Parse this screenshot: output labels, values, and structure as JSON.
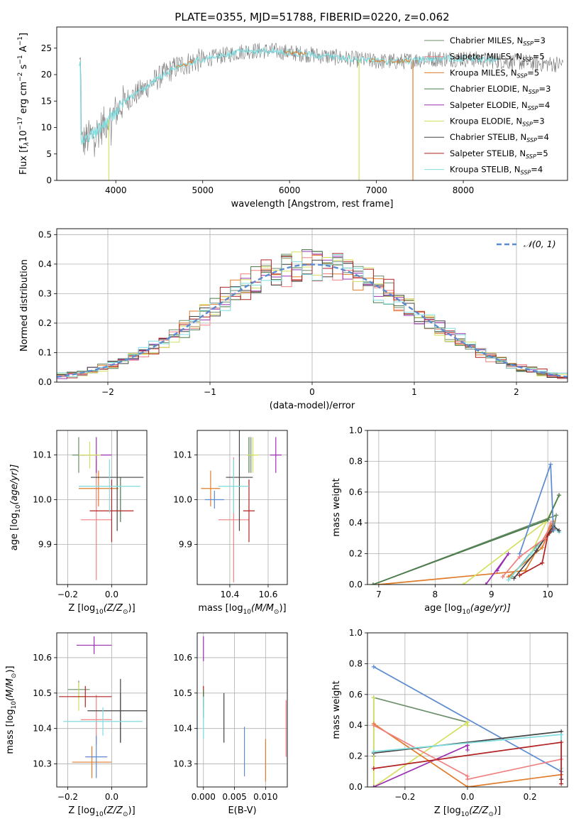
{
  "figure": {
    "title": "PLATE=0355, MJD=51788, FIBERID=0220, z=0.062"
  },
  "legend_sub": {
    "ssp": "SSP",
    "lambda": "λ",
    "sun": "⊙"
  },
  "models": [
    {
      "name": "Chabrier MILES",
      "n": "3",
      "color": "#6b8e6b"
    },
    {
      "name": "Salpeter MILES",
      "n": "5",
      "color": "#f08080"
    },
    {
      "name": "Kroupa MILES",
      "n": "5",
      "color": "#e07b2a"
    },
    {
      "name": "Chabrier ELODIE",
      "n": "3",
      "color": "#4a7a4a"
    },
    {
      "name": "Salpeter ELODIE",
      "n": "4",
      "color": "#9b30b0"
    },
    {
      "name": "Kroupa ELODIE",
      "n": "3",
      "color": "#d4e060"
    },
    {
      "name": "Chabrier STELIB",
      "n": "4",
      "color": "#444444"
    },
    {
      "name": "Salpeter STELIB",
      "n": "5",
      "color": "#b22222"
    },
    {
      "name": "Kroupa STELIB",
      "n": "4",
      "color": "#80dde0"
    }
  ],
  "chart_data": [
    {
      "id": "spectrum",
      "type": "line",
      "xlabel": "wavelength [Angstrom, rest frame]",
      "ylabel_pre": "Flux [f",
      "ylabel_mid": "10",
      "ylabel_exp1": "−17",
      "ylabel_post": " erg cm",
      "ylabel_exp2": "−2",
      "ylabel_s": " s",
      "ylabel_exp3": "−1",
      "ylabel_A": " A",
      "ylabel_exp4": "−1",
      "ylabel_end": "]",
      "xlim": [
        3320,
        9200
      ],
      "ylim": [
        0,
        29
      ],
      "xticks": [
        4000,
        5000,
        6000,
        7000,
        8000
      ],
      "yticks": [
        0,
        5,
        10,
        15,
        20,
        25
      ],
      "continuum": {
        "x": [
          3600,
          3800,
          3950,
          4100,
          4300,
          4500,
          4700,
          4900,
          5200,
          5500,
          5800,
          6100,
          6400,
          6700,
          7000,
          7300,
          7600,
          8000,
          8500,
          9000
        ],
        "y": [
          7,
          9.5,
          12,
          15,
          17,
          19.5,
          21.5,
          22.5,
          23.5,
          24.5,
          24.5,
          24,
          23.5,
          23,
          22.5,
          22.5,
          23,
          23,
          22.5,
          22
        ]
      },
      "drops": [
        {
          "x": 6800,
          "model": "Kroupa ELODIE"
        },
        {
          "x": 7420,
          "model": "Kroupa MILES"
        },
        {
          "x": 3920,
          "model": "Kroupa ELODIE"
        }
      ]
    },
    {
      "id": "residuals",
      "type": "bar",
      "xlabel": "(data-model)/error",
      "ylabel": "Normed distribution",
      "xlim": [
        -2.5,
        2.5
      ],
      "ylim": [
        0,
        0.52
      ],
      "xticks": [
        -2,
        -1,
        0,
        1,
        2
      ],
      "yticks": [
        0.0,
        0.1,
        0.2,
        0.3,
        0.4,
        0.5
      ],
      "bin_width": 0.1,
      "legend": "𝒩(0, 1)",
      "normal_color": "#5b8bd0"
    },
    {
      "id": "age-Z",
      "type": "scatter",
      "xlabel_pre": "Z [log",
      "xlabel_sub": "10",
      "xlabel_mid": "(Z/Z",
      "xlabel_end": ")]",
      "ylabel_pre": "age  [log",
      "ylabel_sub": "10",
      "ylabel_end": "(age/yr)]",
      "xlim": [
        -0.25,
        0.16
      ],
      "ylim": [
        9.81,
        10.155
      ],
      "xticks": [
        -0.2,
        0.0
      ],
      "yticks": [
        9.9,
        10.0,
        10.1
      ],
      "points": [
        {
          "model": "Chabrier MILES",
          "x": -0.15,
          "xerr": 0.03,
          "y": 10.1,
          "yerr": 0.04
        },
        {
          "model": "Salpeter MILES",
          "x": -0.07,
          "xerr": 0.07,
          "y": 9.955,
          "yerr": 0.135
        },
        {
          "model": "Kroupa MILES",
          "x": -0.06,
          "xerr": 0.09,
          "y": 10.025,
          "yerr": 0.04
        },
        {
          "model": "Chabrier ELODIE",
          "x": 0.04,
          "xerr": 0.0,
          "y": 10.0,
          "yerr": 0.05
        },
        {
          "model": "Salpeter ELODIE",
          "x": -0.07,
          "xerr": 0.07,
          "y": 10.1,
          "yerr": 0.04
        },
        {
          "model": "Kroupa ELODIE",
          "x": -0.1,
          "xerr": 0.05,
          "y": 10.1,
          "yerr": 0.03
        },
        {
          "model": "Chabrier STELIB",
          "x": 0.025,
          "xerr": 0.12,
          "y": 10.05,
          "yerr": 0.12
        },
        {
          "model": "Salpeter STELIB",
          "x": 0.0,
          "xerr": 0.1,
          "y": 9.975,
          "yerr": 0.07
        },
        {
          "model": "Kroupa STELIB",
          "x": -0.01,
          "xerr": 0.14,
          "y": 10.03,
          "yerr": 0.06
        }
      ]
    },
    {
      "id": "age-mass",
      "type": "scatter",
      "xlabel_pre": "mass [log",
      "xlabel_sub": "10",
      "xlabel_mid": "(M/M",
      "xlabel_end": ")]",
      "xlim": [
        10.23,
        10.7
      ],
      "ylim": [
        9.81,
        10.155
      ],
      "xticks": [
        10.4,
        10.6
      ],
      "yticks": [
        9.9,
        10.0,
        10.1
      ],
      "points": [
        {
          "model": "Chabrier MILES",
          "x": 10.51,
          "xerr": 0.02,
          "y": 10.1,
          "yerr": 0.04
        },
        {
          "model": "Salpeter MILES",
          "x": 10.42,
          "xerr": 0.08,
          "y": 9.955,
          "yerr": 0.14
        },
        {
          "model": "Kroupa MILES",
          "x": 10.3,
          "xerr": 0.05,
          "y": 10.025,
          "yerr": 0.04
        },
        {
          "model": "Chabrier ELODIE",
          "x": 10.5,
          "xerr": 0.0,
          "y": 10.1,
          "yerr": 0.04
        },
        {
          "model": "Salpeter ELODIE",
          "x": 10.64,
          "xerr": 0.03,
          "y": 10.1,
          "yerr": 0.04
        },
        {
          "model": "Kroupa ELODIE",
          "x": 10.52,
          "xerr": 0.03,
          "y": 10.1,
          "yerr": 0.04
        },
        {
          "model": "Chabrier STELIB",
          "x": 10.45,
          "xerr": 0.07,
          "y": 10.05,
          "yerr": 0.12
        },
        {
          "model": "Salpeter STELIB",
          "x": 10.5,
          "xerr": 0.03,
          "y": 9.975,
          "yerr": 0.07
        },
        {
          "model": "Kroupa STELIB",
          "x": 10.42,
          "xerr": 0.08,
          "y": 10.03,
          "yerr": 0.06
        },
        {
          "model": "Kroupa MILES B",
          "x": 10.32,
          "xerr": 0.05,
          "y": 10.0,
          "yerr": 0.02
        }
      ]
    },
    {
      "id": "weight-age",
      "type": "line",
      "xlabel_pre": "age  [log",
      "xlabel_sub": "10",
      "xlabel_end": "(age/yr)]",
      "ylabel": "mass weight",
      "xlim": [
        6.8,
        10.35
      ],
      "ylim": [
        0,
        1
      ],
      "xticks": [
        7,
        8,
        9,
        10
      ],
      "yticks": [
        0.0,
        0.2,
        0.4,
        0.6,
        0.8,
        1.0
      ],
      "series": [
        {
          "model": "Chabrier MILES",
          "x": [
            6.9,
            10.15,
            10.1,
            9.8,
            9.35
          ],
          "y": [
            0.0,
            0.45,
            0.35,
            0.25,
            0.05
          ]
        },
        {
          "model": "Kroupa MILES",
          "x": [
            7.0,
            9.6,
            10.1,
            9.9,
            9.3
          ],
          "y": [
            0.0,
            0.09,
            0.41,
            0.24,
            0.05
          ]
        },
        {
          "model": "Kroupa ELODIE",
          "x": [
            8.5,
            10.0,
            10.2,
            9.7
          ],
          "y": [
            0.0,
            0.42,
            0.58,
            0.2
          ]
        },
        {
          "model": "Salpeter ELODIE",
          "x": [
            8.9,
            9.3,
            9.1
          ],
          "y": [
            0.0,
            0.2,
            0.09
          ]
        },
        {
          "model": "Kroupa STELIB",
          "x": [
            9.3,
            9.7,
            10.1,
            10.2
          ],
          "y": [
            0.03,
            0.2,
            0.37,
            0.34
          ]
        },
        {
          "model": "Chabrier STELIB",
          "x": [
            9.4,
            9.8,
            10.1,
            10.2
          ],
          "y": [
            0.04,
            0.22,
            0.38,
            0.35
          ]
        },
        {
          "model": "Salpeter STELIB",
          "x": [
            9.5,
            9.9,
            10.0,
            10.1
          ],
          "y": [
            0.06,
            0.14,
            0.32,
            0.36
          ]
        },
        {
          "model": "Salpeter MILES",
          "x": [
            9.2,
            9.5,
            9.95,
            10.05
          ],
          "y": [
            0.05,
            0.18,
            0.3,
            0.4
          ]
        },
        {
          "model": "Chabrier ELODIE",
          "x": [
            6.9,
            10.0,
            10.2
          ],
          "y": [
            0.0,
            0.42,
            0.58
          ]
        },
        {
          "model": "Kroupa MILES C",
          "x": [
            9.5,
            10.05,
            10.1
          ],
          "y": [
            0.2,
            0.78,
            0.35
          ]
        }
      ]
    },
    {
      "id": "mass-Z",
      "type": "scatter",
      "xlabel_pre": "Z [log",
      "xlabel_sub": "10",
      "xlabel_mid": "(Z/Z",
      "xlabel_end": ")]",
      "ylabel_pre": "mass [log",
      "ylabel_sub": "10",
      "ylabel_mid": "(M/M",
      "ylabel_end": ")]",
      "xlim": [
        -0.25,
        0.16
      ],
      "ylim": [
        10.235,
        10.67
      ],
      "xticks": [
        -0.2,
        0.0
      ],
      "yticks": [
        10.3,
        10.4,
        10.5,
        10.6
      ],
      "points": [
        {
          "model": "Chabrier MILES",
          "x": -0.15,
          "xerr": 0.05,
          "y": 10.51,
          "yerr": 0.025
        },
        {
          "model": "Salpeter MILES",
          "x": -0.07,
          "xerr": 0.07,
          "y": 10.425,
          "yerr": 0.07
        },
        {
          "model": "Kroupa MILES",
          "x": -0.09,
          "xerr": 0.09,
          "y": 10.305,
          "yerr": 0.045
        },
        {
          "model": "Chabrier ELODIE",
          "x": 0.04,
          "xerr": 0.0,
          "y": 10.43,
          "yerr": 0.07
        },
        {
          "model": "Salpeter ELODIE",
          "x": -0.08,
          "xerr": 0.08,
          "y": 10.635,
          "yerr": 0.025
        },
        {
          "model": "Kroupa ELODIE",
          "x": -0.15,
          "xerr": 0.03,
          "y": 10.49,
          "yerr": 0.04
        },
        {
          "model": "Chabrier STELIB",
          "x": 0.04,
          "xerr": 0.15,
          "y": 10.45,
          "yerr": 0.09
        },
        {
          "model": "Salpeter STELIB",
          "x": -0.12,
          "xerr": 0.12,
          "y": 10.49,
          "yerr": 0.03
        },
        {
          "model": "Kroupa STELIB",
          "x": -0.04,
          "xerr": 0.18,
          "y": 10.42,
          "yerr": 0.04
        },
        {
          "model": "Kroupa MILES B",
          "x": -0.07,
          "xerr": 0.05,
          "y": 10.32,
          "yerr": 0.06
        }
      ]
    },
    {
      "id": "mass-EBV",
      "type": "scatter",
      "xlabel": "E(B-V)",
      "xlim": [
        -0.001,
        0.0135
      ],
      "ylim": [
        10.235,
        10.67
      ],
      "xticks": [
        0.0,
        0.005,
        0.01
      ],
      "yticks": [
        10.3,
        10.4,
        10.5,
        10.6
      ],
      "points": [
        {
          "model": "Salpeter ELODIE",
          "x": 0.0,
          "y": 10.625,
          "yerr": 0.035
        },
        {
          "model": "Salpeter STELIB",
          "x": 0.0,
          "y": 10.49,
          "yerr": 0.03
        },
        {
          "model": "Chabrier ELODIE",
          "x": 0.0,
          "y": 10.47,
          "yerr": 0.04
        },
        {
          "model": "Kroupa STELIB",
          "x": 0.0,
          "y": 10.43,
          "yerr": 0.06
        },
        {
          "model": "Chabrier STELIB",
          "x": 0.0033,
          "y": 10.43,
          "yerr": 0.07
        },
        {
          "model": "Kroupa MILES C",
          "x": 0.0066,
          "y": 10.335,
          "yerr": 0.07
        },
        {
          "model": "Kroupa MILES",
          "x": 0.01,
          "y": 10.31,
          "yerr": 0.06
        },
        {
          "model": "Salpeter MILES",
          "x": 0.0133,
          "y": 10.4,
          "yerr": 0.08
        }
      ]
    },
    {
      "id": "weight-Z",
      "type": "line",
      "xlabel_pre": "Z [log",
      "xlabel_sub": "10",
      "xlabel_mid": "(Z/Z",
      "xlabel_end": ")]",
      "ylabel": "mass weight",
      "xlim": [
        -0.32,
        0.32
      ],
      "ylim": [
        0,
        1
      ],
      "xticks": [
        -0.2,
        0.0,
        0.2
      ],
      "yticks": [
        0.0,
        0.2,
        0.4,
        0.6,
        0.8,
        1.0
      ],
      "series": [
        {
          "model": "Kroupa MILES C",
          "x": [
            -0.3,
            0.3,
            0.3
          ],
          "y": [
            0.78,
            0.1,
            0.05
          ]
        },
        {
          "model": "Chabrier MILES",
          "x": [
            -0.3,
            -0.3,
            0.0,
            0.0
          ],
          "y": [
            0.2,
            0.58,
            0.42,
            0.4
          ]
        },
        {
          "model": "Kroupa ELODIE",
          "x": [
            -0.3,
            -0.3,
            0.0,
            0.0
          ],
          "y": [
            0.58,
            0.0,
            0.42,
            0.4
          ]
        },
        {
          "model": "Salpeter ELODIE",
          "x": [
            -0.3,
            0.0,
            0.0
          ],
          "y": [
            0.0,
            0.27,
            0.24
          ]
        },
        {
          "model": "Kroupa MILES",
          "x": [
            -0.3,
            0.0,
            0.3
          ],
          "y": [
            0.41,
            0.0,
            0.08
          ]
        },
        {
          "model": "Salpeter MILES",
          "x": [
            -0.3,
            0.0,
            0.0,
            0.3
          ],
          "y": [
            0.4,
            0.07,
            0.05,
            0.18
          ]
        },
        {
          "model": "Chabrier STELIB",
          "x": [
            -0.3,
            0.3,
            0.3
          ],
          "y": [
            0.22,
            0.36,
            0.05
          ]
        },
        {
          "model": "Kroupa STELIB",
          "x": [
            -0.3,
            0.3,
            0.3
          ],
          "y": [
            0.23,
            0.34,
            0.12
          ]
        },
        {
          "model": "Salpeter STELIB",
          "x": [
            -0.3,
            0.3,
            0.3
          ],
          "y": [
            0.12,
            0.29,
            0.02
          ]
        }
      ]
    }
  ],
  "extra_colors": {
    "Kroupa MILES B": "#5b8bd0",
    "Kroupa MILES C": "#5b8bd0"
  }
}
